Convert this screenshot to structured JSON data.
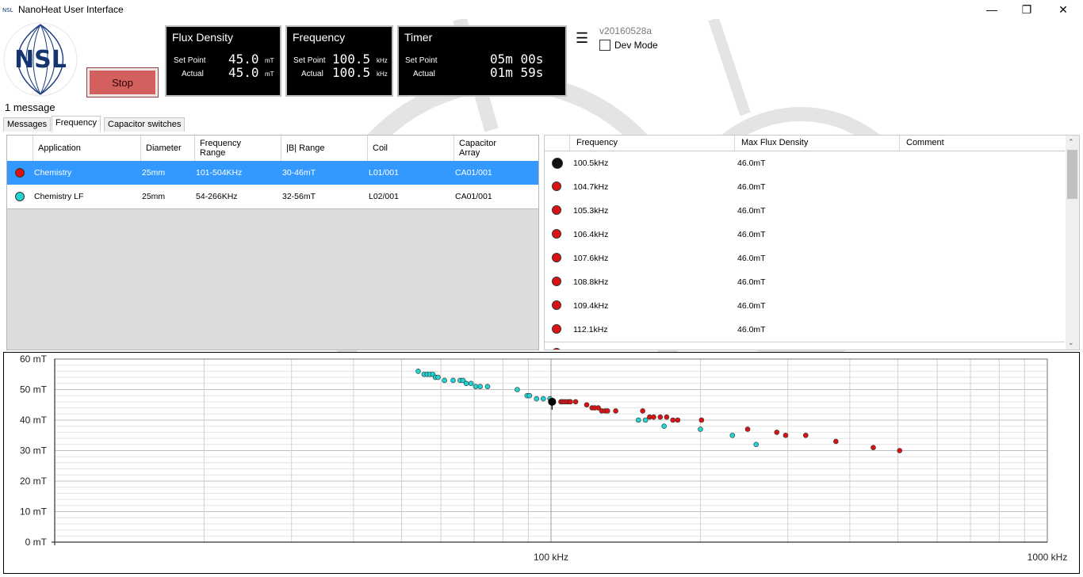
{
  "window": {
    "title": "NanoHeat User Interface",
    "buttons": {
      "minimize": "—",
      "maximize": "❐",
      "close": "✕"
    }
  },
  "logo": {
    "text": "NSL"
  },
  "controls": {
    "stop_label": "Stop"
  },
  "panels": {
    "flux": {
      "title": "Flux Density",
      "setpoint_label": "Set Point",
      "actual_label": "Actual",
      "setpoint": "45.0",
      "actual": "45.0",
      "unit": "mT"
    },
    "frequency": {
      "title": "Frequency",
      "setpoint_label": "Set Point",
      "actual_label": "Actual",
      "setpoint": "100.5",
      "actual": "100.5",
      "unit": "kHz"
    },
    "timer": {
      "title": "Timer",
      "setpoint_label": "Set Point",
      "actual_label": "Actual",
      "setpoint": "05m 00s",
      "actual": "01m 59s"
    }
  },
  "menu_icon": "☰",
  "version": "v20160528a",
  "dev_mode": {
    "label": "Dev Mode",
    "checked": false
  },
  "message_count": "1 message",
  "tabs": [
    {
      "label": "Messages",
      "active": false
    },
    {
      "label": "Frequency",
      "active": true
    },
    {
      "label": "Capacitor switches",
      "active": false
    }
  ],
  "applications": {
    "columns": [
      "Application",
      "Diameter",
      "Frequency Range",
      "|B| Range",
      "Coil",
      "Capacitor Array"
    ],
    "rows": [
      {
        "application": "Chemistry",
        "diameter": "25mm",
        "freq_range": "101-504KHz",
        "b_range": "30-46mT",
        "coil": "L01/001",
        "cap_array": "CA01/001",
        "color": "#dd1111",
        "selected": true
      },
      {
        "application": "Chemistry LF",
        "diameter": "25mm",
        "freq_range": "54-266KHz",
        "b_range": "32-56mT",
        "coil": "L02/001",
        "cap_array": "CA01/001",
        "color": "#22d3d3",
        "selected": false
      }
    ]
  },
  "setpoints": {
    "columns": [
      "Frequency",
      "Max Flux Density",
      "Comment"
    ],
    "rows": [
      {
        "frequency": "100.5kHz",
        "flux": "46.0mT",
        "comment": "",
        "color": "#111111"
      },
      {
        "frequency": "104.7kHz",
        "flux": "46.0mT",
        "comment": "",
        "color": "#dd1111"
      },
      {
        "frequency": "105.3kHz",
        "flux": "46.0mT",
        "comment": "",
        "color": "#dd1111"
      },
      {
        "frequency": "106.4kHz",
        "flux": "46.0mT",
        "comment": "",
        "color": "#dd1111"
      },
      {
        "frequency": "107.6kHz",
        "flux": "46.0mT",
        "comment": "",
        "color": "#dd1111"
      },
      {
        "frequency": "108.8kHz",
        "flux": "46.0mT",
        "comment": "",
        "color": "#dd1111"
      },
      {
        "frequency": "109.4kHz",
        "flux": "46.0mT",
        "comment": "",
        "color": "#dd1111"
      },
      {
        "frequency": "112.1kHz",
        "flux": "46.0mT",
        "comment": "",
        "color": "#dd1111"
      }
    ]
  },
  "chart_data": {
    "type": "scatter",
    "x_scale": "log",
    "xlim": [
      10,
      1000
    ],
    "ylim": [
      0,
      60
    ],
    "x_ticks": [
      {
        "v": 100,
        "label": "100 kHz"
      },
      {
        "v": 1000,
        "label": "1000 kHz"
      }
    ],
    "y_ticks": [
      {
        "v": 0,
        "label": "0 mT"
      },
      {
        "v": 10,
        "label": "10 mT"
      },
      {
        "v": 20,
        "label": "20 mT"
      },
      {
        "v": 30,
        "label": "30 mT"
      },
      {
        "v": 40,
        "label": "40 mT"
      },
      {
        "v": 50,
        "label": "50 mT"
      },
      {
        "v": 60,
        "label": "60 mT"
      }
    ],
    "grid": true,
    "current_point": {
      "x": 100.5,
      "y": 46
    },
    "series": [
      {
        "color": "#22d3d3",
        "points": [
          [
            54,
            56
          ],
          [
            55.5,
            55
          ],
          [
            56.3,
            55
          ],
          [
            57,
            55
          ],
          [
            57.8,
            55
          ],
          [
            58.5,
            54
          ],
          [
            59.2,
            54
          ],
          [
            61,
            53
          ],
          [
            63.5,
            53
          ],
          [
            65.6,
            53
          ],
          [
            66.5,
            53
          ],
          [
            67.5,
            52
          ],
          [
            69,
            52
          ],
          [
            70.5,
            51
          ],
          [
            72,
            51
          ],
          [
            74.5,
            51
          ],
          [
            85.5,
            50
          ],
          [
            89.5,
            48
          ],
          [
            90.5,
            48
          ],
          [
            93.5,
            47
          ],
          [
            96.5,
            47
          ],
          [
            99.5,
            47
          ],
          [
            100.5,
            46
          ],
          [
            150,
            40
          ],
          [
            155,
            40
          ],
          [
            169,
            38
          ],
          [
            200,
            37
          ],
          [
            232,
            35
          ],
          [
            259,
            32
          ]
        ]
      },
      {
        "color": "#dd1111",
        "points": [
          [
            100.5,
            46
          ],
          [
            104.7,
            46
          ],
          [
            105.3,
            46
          ],
          [
            106.4,
            46
          ],
          [
            107.6,
            46
          ],
          [
            108.8,
            46
          ],
          [
            109.4,
            46
          ],
          [
            112.1,
            46
          ],
          [
            118,
            45
          ],
          [
            121,
            44
          ],
          [
            122.5,
            44
          ],
          [
            124.5,
            44
          ],
          [
            126.5,
            43
          ],
          [
            128.5,
            43
          ],
          [
            130,
            43
          ],
          [
            135,
            43
          ],
          [
            153,
            43
          ],
          [
            158,
            41
          ],
          [
            161,
            41
          ],
          [
            166,
            41
          ],
          [
            171,
            41
          ],
          [
            176,
            40
          ],
          [
            180,
            40
          ],
          [
            201,
            40
          ],
          [
            249,
            37
          ],
          [
            285,
            36
          ],
          [
            297,
            35
          ],
          [
            326,
            35
          ],
          [
            375,
            33
          ],
          [
            446,
            31
          ],
          [
            504,
            30
          ]
        ]
      }
    ]
  }
}
